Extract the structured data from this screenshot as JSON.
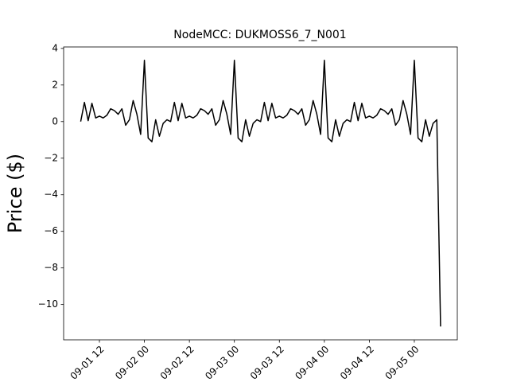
{
  "chart_data": {
    "type": "line",
    "title": "NodeMCC: DUKMOSS6_7_N001",
    "y_label": "Price ($)",
    "x": [
      "09-01 07",
      "09-01 08",
      "09-01 09",
      "09-01 10",
      "09-01 11",
      "09-01 12",
      "09-01 13",
      "09-01 14",
      "09-01 15",
      "09-01 16",
      "09-01 17",
      "09-01 18",
      "09-01 19",
      "09-01 20",
      "09-01 21",
      "09-01 22",
      "09-01 23",
      "09-02 00",
      "09-02 01",
      "09-02 02",
      "09-02 03",
      "09-02 04",
      "09-02 05",
      "09-02 06",
      "09-02 07",
      "09-02 08",
      "09-02 09",
      "09-02 10",
      "09-02 11",
      "09-02 12",
      "09-02 13",
      "09-02 14",
      "09-02 15",
      "09-02 16",
      "09-02 17",
      "09-02 18",
      "09-02 19",
      "09-02 20",
      "09-02 21",
      "09-02 22",
      "09-02 23",
      "09-03 00",
      "09-03 01",
      "09-03 02",
      "09-03 03",
      "09-03 04",
      "09-03 05",
      "09-03 06",
      "09-03 07",
      "09-03 08",
      "09-03 09",
      "09-03 10",
      "09-03 11",
      "09-03 12",
      "09-03 13",
      "09-03 14",
      "09-03 15",
      "09-03 16",
      "09-03 17",
      "09-03 18",
      "09-03 19",
      "09-03 20",
      "09-03 21",
      "09-03 22",
      "09-03 23",
      "09-04 00",
      "09-04 01",
      "09-04 02",
      "09-04 03",
      "09-04 04",
      "09-04 05",
      "09-04 06",
      "09-04 07",
      "09-04 08",
      "09-04 09",
      "09-04 10",
      "09-04 11",
      "09-04 12",
      "09-04 13",
      "09-04 14",
      "09-04 15",
      "09-04 16",
      "09-04 17",
      "09-04 18",
      "09-04 19",
      "09-04 20",
      "09-04 21",
      "09-04 22",
      "09-04 23",
      "09-05 00",
      "09-05 01",
      "09-05 02",
      "09-05 03",
      "09-05 04",
      "09-05 05",
      "09-05 06",
      "09-05 07"
    ],
    "values": [
      0,
      1.05,
      0.05,
      1.0,
      0.2,
      0.3,
      0.2,
      0.35,
      0.7,
      0.6,
      0.4,
      0.7,
      -0.2,
      0.1,
      1.15,
      0.4,
      -0.7,
      3.35,
      -0.9,
      -1.1,
      0.1,
      -0.8,
      -0.1,
      0.1,
      0,
      1.05,
      0.05,
      1.0,
      0.2,
      0.3,
      0.2,
      0.35,
      0.7,
      0.6,
      0.4,
      0.7,
      -0.2,
      0.1,
      1.15,
      0.4,
      -0.7,
      3.35,
      -0.9,
      -1.1,
      0.1,
      -0.8,
      -0.1,
      0.1,
      0,
      1.05,
      0.05,
      1.0,
      0.2,
      0.3,
      0.2,
      0.35,
      0.7,
      0.6,
      0.4,
      0.7,
      -0.2,
      0.1,
      1.15,
      0.4,
      -0.7,
      3.35,
      -0.9,
      -1.1,
      0.1,
      -0.8,
      -0.1,
      0.1,
      0,
      1.05,
      0.05,
      1.0,
      0.2,
      0.3,
      0.2,
      0.35,
      0.7,
      0.6,
      0.4,
      0.7,
      -0.2,
      0.1,
      1.15,
      0.4,
      -0.7,
      3.35,
      -0.9,
      -1.1,
      0.1,
      -0.8,
      -0.1,
      0.1,
      -11.2
    ],
    "color": "#000000",
    "xlim": [
      "09-01 02:27",
      "09-05 11:28"
    ],
    "xticks": [
      "09-01 12",
      "09-02 00",
      "09-02 12",
      "09-03 00",
      "09-03 12",
      "09-04 00",
      "09-04 12",
      "09-05 00"
    ],
    "ylim": [
      -11.93,
      4.08
    ],
    "yticks": [
      {
        "value": -10,
        "label": "−10"
      },
      {
        "value": -8,
        "label": "−8"
      },
      {
        "value": -6,
        "label": "−6"
      },
      {
        "value": -4,
        "label": "−4"
      },
      {
        "value": -2,
        "label": "−2"
      },
      0,
      2,
      4
    ]
  }
}
